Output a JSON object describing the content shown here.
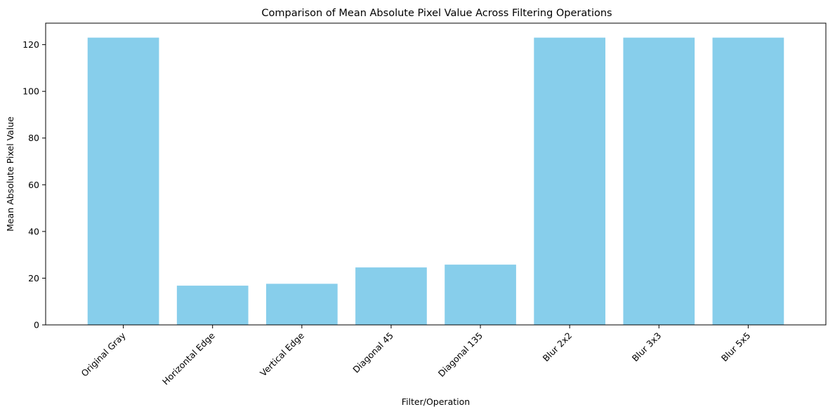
{
  "chart_data": {
    "type": "bar",
    "title": "Comparison of Mean Absolute Pixel Value Across Filtering Operations",
    "xlabel": "Filter/Operation",
    "ylabel": "Mean Absolute Pixel Value",
    "categories": [
      "Original Gray",
      "Horizontal Edge",
      "Vertical Edge",
      "Diagonal 45",
      "Diagonal 135",
      "Blur 2x2",
      "Blur 3x3",
      "Blur 5x5"
    ],
    "values": [
      123,
      16.8,
      17.6,
      24.6,
      25.8,
      123,
      123,
      123
    ],
    "ylim": [
      0,
      129.2
    ],
    "yticks": [
      0,
      20,
      40,
      60,
      80,
      100,
      120
    ],
    "bar_color": "#87ceeb",
    "grid": false,
    "legend": "none",
    "xtick_rotation": "45 degrees"
  }
}
